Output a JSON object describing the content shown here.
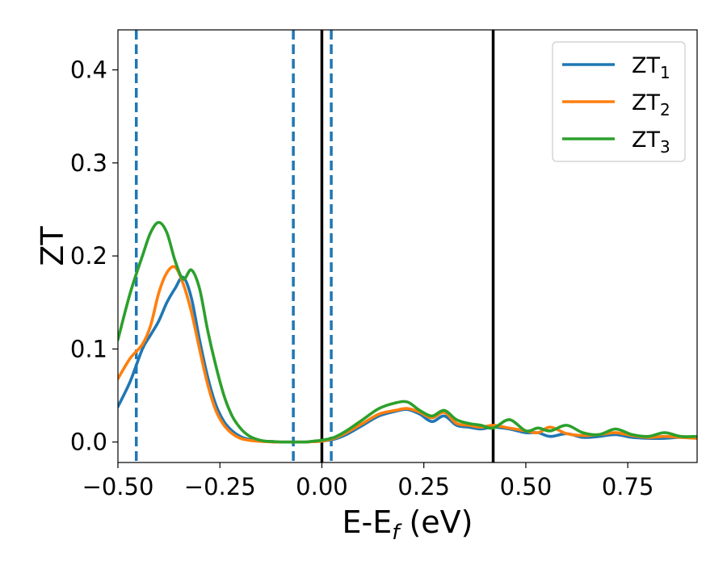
{
  "chart_data": {
    "type": "line",
    "title": "",
    "xlabel_main": "E-E",
    "xlabel_sub": "f",
    "xlabel_tail": " (eV)",
    "ylabel": "ZT",
    "xlim": [
      -0.5,
      0.92
    ],
    "ylim": [
      -0.022,
      0.443
    ],
    "xticks": [
      -0.5,
      -0.25,
      0.0,
      0.25,
      0.5,
      0.75
    ],
    "xtick_labels": [
      "−0.50",
      "−0.25",
      "0.00",
      "0.25",
      "0.50",
      "0.75"
    ],
    "yticks": [
      0.0,
      0.1,
      0.2,
      0.3,
      0.4
    ],
    "ytick_labels": [
      "0.0",
      "0.1",
      "0.2",
      "0.3",
      "0.4"
    ],
    "grid": false,
    "legend_position": "top-right",
    "vlines": [
      {
        "x": -0.455,
        "style": "dashed",
        "color": "#1f77b4"
      },
      {
        "x": -0.07,
        "style": "dashed",
        "color": "#1f77b4"
      },
      {
        "x": 0.023,
        "style": "dashed",
        "color": "#1f77b4"
      },
      {
        "x": 0.0,
        "style": "solid",
        "color": "#000000"
      },
      {
        "x": 0.42,
        "style": "solid",
        "color": "#000000"
      }
    ],
    "series": [
      {
        "name": "ZT",
        "sub": "1",
        "color": "#1f77b4",
        "x": [
          -0.5,
          -0.47,
          -0.44,
          -0.42,
          -0.4,
          -0.38,
          -0.36,
          -0.34,
          -0.32,
          -0.3,
          -0.28,
          -0.26,
          -0.24,
          -0.22,
          -0.2,
          -0.18,
          -0.16,
          -0.14,
          -0.12,
          -0.1,
          -0.08,
          -0.06,
          -0.04,
          -0.02,
          0.0,
          0.03,
          0.06,
          0.1,
          0.14,
          0.18,
          0.21,
          0.24,
          0.27,
          0.3,
          0.33,
          0.36,
          0.39,
          0.42,
          0.46,
          0.5,
          0.53,
          0.56,
          0.6,
          0.64,
          0.68,
          0.72,
          0.76,
          0.8,
          0.84,
          0.88,
          0.92
        ],
        "y": [
          0.038,
          0.065,
          0.1,
          0.115,
          0.13,
          0.15,
          0.165,
          0.177,
          0.155,
          0.11,
          0.07,
          0.04,
          0.022,
          0.012,
          0.006,
          0.003,
          0.002,
          0.001,
          0.0005,
          0.0,
          0.0,
          0.0,
          0.0,
          0.0005,
          0.001,
          0.003,
          0.008,
          0.018,
          0.028,
          0.033,
          0.035,
          0.03,
          0.022,
          0.028,
          0.018,
          0.016,
          0.014,
          0.016,
          0.014,
          0.01,
          0.01,
          0.006,
          0.009,
          0.005,
          0.006,
          0.008,
          0.005,
          0.004,
          0.004,
          0.005,
          0.004
        ]
      },
      {
        "name": "ZT",
        "sub": "2",
        "color": "#ff7f0e",
        "x": [
          -0.5,
          -0.47,
          -0.44,
          -0.42,
          -0.4,
          -0.38,
          -0.36,
          -0.34,
          -0.32,
          -0.3,
          -0.28,
          -0.26,
          -0.24,
          -0.22,
          -0.2,
          -0.18,
          -0.16,
          -0.14,
          -0.12,
          -0.1,
          -0.08,
          -0.06,
          -0.04,
          -0.02,
          0.0,
          0.03,
          0.06,
          0.1,
          0.14,
          0.18,
          0.21,
          0.24,
          0.27,
          0.3,
          0.33,
          0.36,
          0.39,
          0.42,
          0.46,
          0.5,
          0.53,
          0.56,
          0.6,
          0.64,
          0.68,
          0.72,
          0.76,
          0.8,
          0.84,
          0.88,
          0.92
        ],
        "y": [
          0.068,
          0.09,
          0.105,
          0.125,
          0.16,
          0.182,
          0.188,
          0.17,
          0.14,
          0.1,
          0.062,
          0.034,
          0.018,
          0.009,
          0.004,
          0.002,
          0.001,
          0.0005,
          0.0,
          0.0,
          0.0,
          0.0,
          0.0,
          0.0005,
          0.001,
          0.004,
          0.01,
          0.02,
          0.03,
          0.034,
          0.036,
          0.032,
          0.026,
          0.032,
          0.02,
          0.018,
          0.016,
          0.018,
          0.015,
          0.012,
          0.01,
          0.016,
          0.009,
          0.007,
          0.008,
          0.01,
          0.007,
          0.005,
          0.006,
          0.005,
          0.004
        ]
      },
      {
        "name": "ZT",
        "sub": "3",
        "color": "#2ca02c",
        "x": [
          -0.5,
          -0.47,
          -0.44,
          -0.42,
          -0.4,
          -0.38,
          -0.36,
          -0.34,
          -0.32,
          -0.3,
          -0.28,
          -0.26,
          -0.24,
          -0.22,
          -0.2,
          -0.18,
          -0.16,
          -0.14,
          -0.12,
          -0.1,
          -0.08,
          -0.06,
          -0.04,
          -0.02,
          0.0,
          0.03,
          0.06,
          0.1,
          0.14,
          0.18,
          0.21,
          0.24,
          0.27,
          0.3,
          0.33,
          0.36,
          0.39,
          0.42,
          0.46,
          0.5,
          0.53,
          0.56,
          0.6,
          0.64,
          0.68,
          0.72,
          0.76,
          0.8,
          0.84,
          0.88,
          0.92
        ],
        "y": [
          0.11,
          0.16,
          0.2,
          0.225,
          0.236,
          0.225,
          0.195,
          0.175,
          0.185,
          0.165,
          0.12,
          0.082,
          0.05,
          0.028,
          0.015,
          0.007,
          0.003,
          0.001,
          0.0005,
          0.0,
          0.0,
          0.0,
          0.0,
          0.001,
          0.002,
          0.005,
          0.012,
          0.024,
          0.036,
          0.042,
          0.043,
          0.034,
          0.028,
          0.034,
          0.024,
          0.02,
          0.018,
          0.015,
          0.024,
          0.012,
          0.015,
          0.012,
          0.018,
          0.01,
          0.008,
          0.014,
          0.008,
          0.006,
          0.01,
          0.006,
          0.006
        ]
      }
    ]
  }
}
